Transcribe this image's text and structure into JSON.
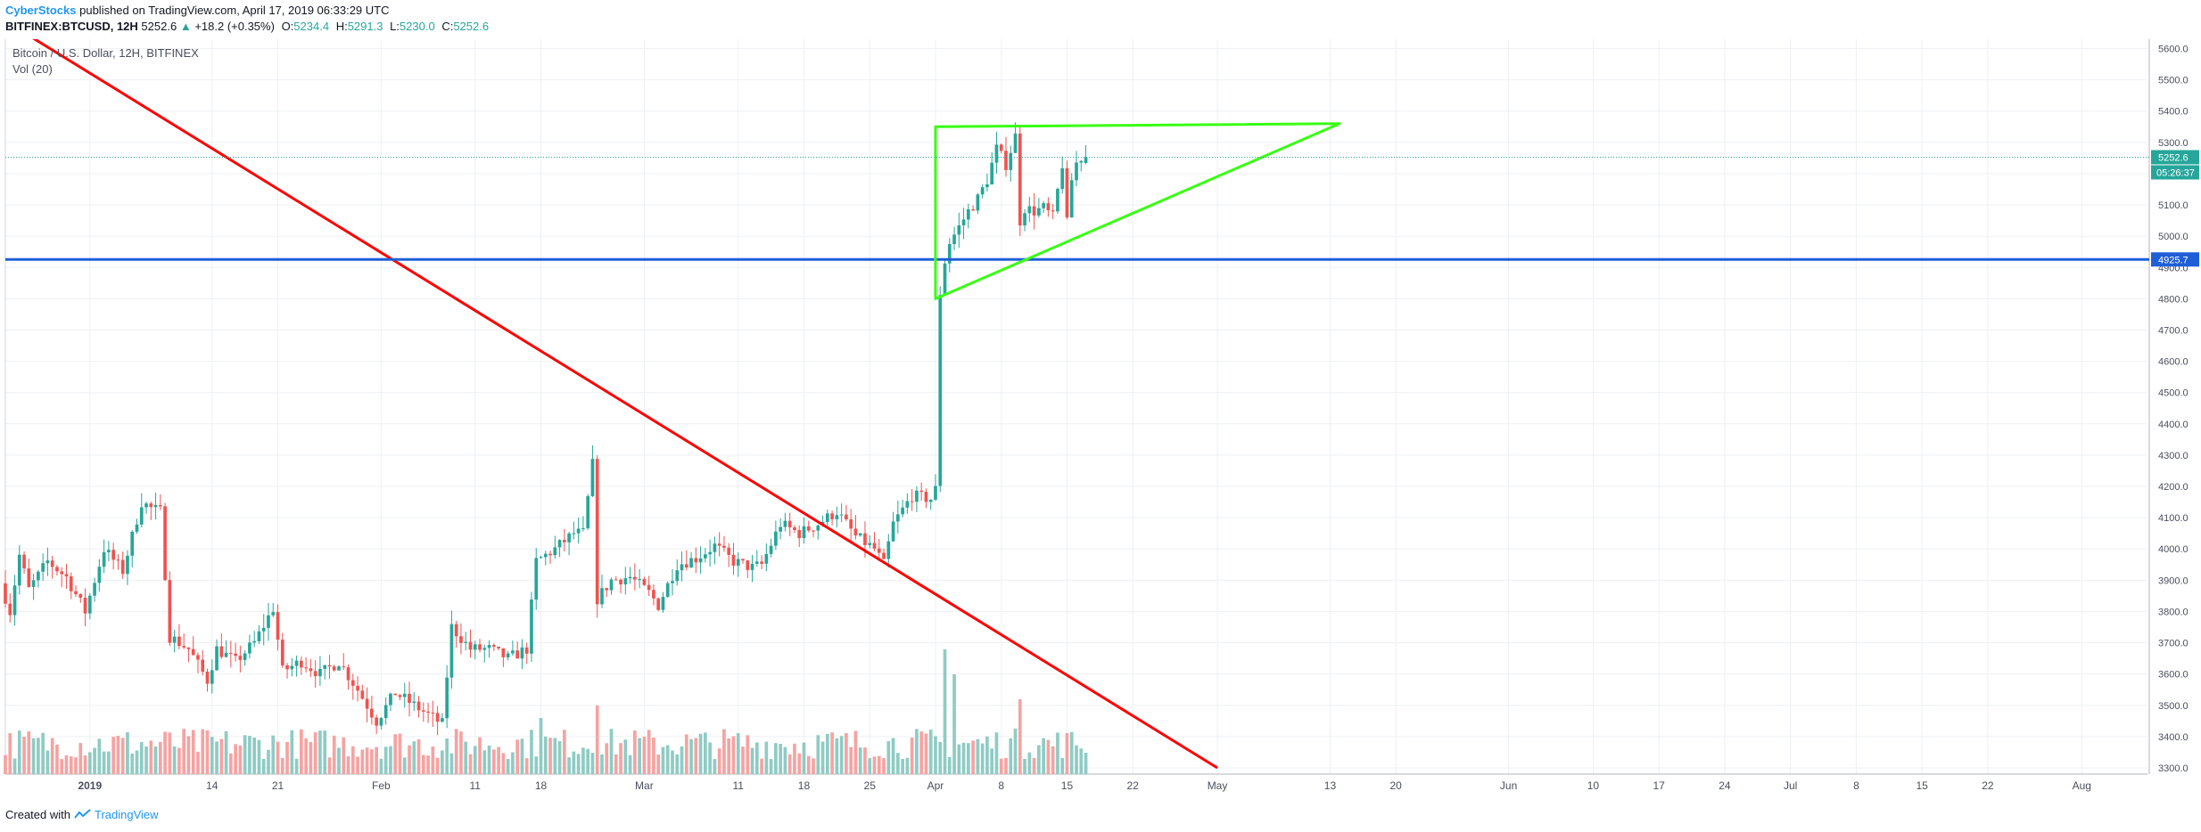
{
  "header": {
    "author": "CyberStocks",
    "published": "published on TradingView.com, April 17, 2019 06:33:29 UTC",
    "symbol": "BITFINEX:BTCUSD, 12H",
    "last": "5252.6",
    "change_arrow": "▲",
    "change": "+18.2 (+0.35%)",
    "o_label": "O:",
    "o_value": "5234.4",
    "h_label": "H:",
    "h_value": "5291.3",
    "l_label": "L:",
    "l_value": "5230.0",
    "c_label": "C:",
    "c_value": "5252.6"
  },
  "legend": {
    "title": "Bitcoin / U.S. Dollar, 12H, BITFINEX",
    "volume": "Vol (20)"
  },
  "footer": {
    "created_with": "Created with",
    "brand": "TradingView"
  },
  "colors": {
    "up": "#26a69a",
    "down": "#ef5350",
    "volume_up": "#8fcbc4",
    "volume_down": "#f5a3a2",
    "trendline_red": "#ff0000",
    "triangle_green": "#39ff14",
    "support_blue": "#1e5fd8",
    "last_price_label": "#26a69a",
    "support_label": "#1e5fd8"
  },
  "chart_data": {
    "type": "candlestick",
    "title": "Bitcoin / U.S. Dollar, 12H, BITFINEX",
    "ylim": [
      3280,
      5630
    ],
    "y_ticks": [
      3300,
      3400,
      3500,
      3600,
      3700,
      3800,
      3900,
      4000,
      4100,
      4200,
      4300,
      4400,
      4500,
      4600,
      4700,
      4800,
      4900,
      5000,
      5100,
      5200,
      5300,
      5400,
      5500,
      5600
    ],
    "x_range": [
      "2018-12-23",
      "2019-08-08"
    ],
    "x_ticks": [
      {
        "date": "2019-01-01",
        "label": "2019"
      },
      {
        "date": "2019-01-14",
        "label": "14"
      },
      {
        "date": "2019-01-21",
        "label": "21"
      },
      {
        "date": "2019-02-01",
        "label": "Feb"
      },
      {
        "date": "2019-02-11",
        "label": "11"
      },
      {
        "date": "2019-02-18",
        "label": "18"
      },
      {
        "date": "2019-03-01",
        "label": "Mar"
      },
      {
        "date": "2019-03-11",
        "label": "11"
      },
      {
        "date": "2019-03-18",
        "label": "18"
      },
      {
        "date": "2019-03-25",
        "label": "25"
      },
      {
        "date": "2019-04-01",
        "label": "Apr"
      },
      {
        "date": "2019-04-08",
        "label": "8"
      },
      {
        "date": "2019-04-15",
        "label": "15"
      },
      {
        "date": "2019-04-22",
        "label": "22"
      },
      {
        "date": "2019-05-01",
        "label": "May"
      },
      {
        "date": "2019-05-13",
        "label": "13"
      },
      {
        "date": "2019-05-20",
        "label": "20"
      },
      {
        "date": "2019-06-01",
        "label": "Jun"
      },
      {
        "date": "2019-06-10",
        "label": "10"
      },
      {
        "date": "2019-06-17",
        "label": "17"
      },
      {
        "date": "2019-06-24",
        "label": "24"
      },
      {
        "date": "2019-07-01",
        "label": "Jul"
      },
      {
        "date": "2019-07-08",
        "label": "8"
      },
      {
        "date": "2019-07-15",
        "label": "15"
      },
      {
        "date": "2019-07-22",
        "label": "22"
      },
      {
        "date": "2019-08-01",
        "label": "Aug"
      }
    ],
    "first_bar": "2018-12-23T00:00",
    "bar_hours": 12,
    "anchors": [
      [
        "2018-12-23",
        3890
      ],
      [
        "2018-12-24",
        3800
      ],
      [
        "2018-12-25",
        3980
      ],
      [
        "2018-12-26",
        3870
      ],
      [
        "2018-12-28",
        3960
      ],
      [
        "2018-12-30",
        3910
      ],
      [
        "2019-01-01",
        3800
      ],
      [
        "2019-01-03",
        4000
      ],
      [
        "2019-01-05",
        3930
      ],
      [
        "2019-01-07",
        4150
      ],
      [
        "2019-01-08",
        4130
      ],
      [
        "2019-01-09",
        4120
      ],
      [
        "2019-01-10",
        3720
      ],
      [
        "2019-01-12",
        3680
      ],
      [
        "2019-01-14",
        3580
      ],
      [
        "2019-01-15",
        3680
      ],
      [
        "2019-01-17",
        3640
      ],
      [
        "2019-01-19",
        3700
      ],
      [
        "2019-01-21",
        3810
      ],
      [
        "2019-01-22",
        3610
      ],
      [
        "2019-01-24",
        3640
      ],
      [
        "2019-01-26",
        3600
      ],
      [
        "2019-01-28",
        3640
      ],
      [
        "2019-01-30",
        3550
      ],
      [
        "2019-02-01",
        3450
      ],
      [
        "2019-02-03",
        3540
      ],
      [
        "2019-02-05",
        3500
      ],
      [
        "2019-02-07",
        3460
      ],
      [
        "2019-02-08",
        3440
      ],
      [
        "2019-02-09",
        3750
      ],
      [
        "2019-02-11",
        3680
      ],
      [
        "2019-02-13",
        3680
      ],
      [
        "2019-02-15",
        3650
      ],
      [
        "2019-02-17",
        3680
      ],
      [
        "2019-02-18",
        3960
      ],
      [
        "2019-02-20",
        4000
      ],
      [
        "2019-02-22",
        4050
      ],
      [
        "2019-02-23",
        4050
      ],
      [
        "2019-02-24",
        4270
      ],
      [
        "2019-02-24T12",
        3840
      ],
      [
        "2019-02-26",
        3900
      ],
      [
        "2019-02-28",
        3910
      ],
      [
        "2019-03-02",
        3860
      ],
      [
        "2019-03-03",
        3820
      ],
      [
        "2019-03-05",
        3950
      ],
      [
        "2019-03-07",
        3970
      ],
      [
        "2019-03-09",
        4010
      ],
      [
        "2019-03-11",
        3960
      ],
      [
        "2019-03-13",
        3940
      ],
      [
        "2019-03-14",
        3950
      ],
      [
        "2019-03-16",
        4080
      ],
      [
        "2019-03-18",
        4050
      ],
      [
        "2019-03-20",
        4080
      ],
      [
        "2019-03-22",
        4120
      ],
      [
        "2019-03-24",
        4040
      ],
      [
        "2019-03-26",
        4000
      ],
      [
        "2019-03-27",
        3950
      ],
      [
        "2019-03-28",
        4080
      ],
      [
        "2019-03-30",
        4170
      ],
      [
        "2019-04-01",
        4160
      ],
      [
        "2019-04-01T12",
        4190
      ],
      [
        "2019-04-02",
        4820
      ],
      [
        "2019-04-02T12",
        4920
      ],
      [
        "2019-04-03",
        4980
      ],
      [
        "2019-04-04",
        5030
      ],
      [
        "2019-04-05",
        5080
      ],
      [
        "2019-04-06",
        5120
      ],
      [
        "2019-04-07",
        5180
      ],
      [
        "2019-04-08",
        5280
      ],
      [
        "2019-04-09",
        5230
      ],
      [
        "2019-04-10",
        5320
      ],
      [
        "2019-04-10T12",
        5050
      ],
      [
        "2019-04-11",
        5090
      ],
      [
        "2019-04-12",
        5080
      ],
      [
        "2019-04-13",
        5090
      ],
      [
        "2019-04-14",
        5060
      ],
      [
        "2019-04-15",
        5230
      ],
      [
        "2019-04-15T12",
        5040
      ],
      [
        "2019-04-16",
        5180
      ],
      [
        "2019-04-16T12",
        5234
      ],
      [
        "2019-04-17",
        5252
      ]
    ],
    "last_bar": {
      "time": "2019-04-17",
      "open": 5234.4,
      "high": 5291.3,
      "low": 5230.0,
      "close": 5252.6
    },
    "volume_spikes": [
      [
        "2019-04-02",
        1.0
      ],
      [
        "2019-04-03",
        0.8
      ],
      [
        "2019-04-10",
        0.6
      ],
      [
        "2019-02-24",
        0.55
      ],
      [
        "2019-02-18",
        0.45
      ]
    ],
    "price_labels": [
      {
        "value": 5252.6,
        "text": "5252.6",
        "countdown": "05:26:37",
        "color": "#26a69a"
      },
      {
        "value": 4925.7,
        "text": "4925.7",
        "color": "#1e5fd8"
      }
    ],
    "drawings": [
      {
        "type": "trendline",
        "color": "#ff0000",
        "points": [
          [
            "2018-12-23",
            5688
          ],
          [
            "2019-05-01",
            3300
          ]
        ]
      },
      {
        "type": "horizontal",
        "color": "#1e5fd8",
        "value": 4925.7
      },
      {
        "type": "triangle",
        "color": "#39ff14",
        "points": [
          [
            "2019-04-01",
            4800
          ],
          [
            "2019-04-01",
            5350
          ],
          [
            "2019-05-14",
            5360
          ]
        ]
      }
    ]
  }
}
